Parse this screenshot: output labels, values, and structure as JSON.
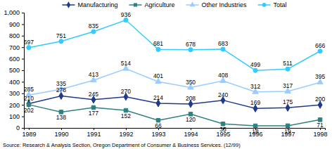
{
  "chart_data": {
    "type": "line",
    "categories": [
      "1989",
      "1990",
      "1991",
      "1992",
      "1993",
      "1994",
      "1995",
      "1996",
      "1997",
      "1998"
    ],
    "series": [
      {
        "name": "Manufacturing",
        "color": "#1f3a8a",
        "marker": "diamond",
        "values": [
          210,
          278,
          245,
          270,
          214,
          208,
          240,
          169,
          175,
          200
        ]
      },
      {
        "name": "Agriculture",
        "color": "#2f8080",
        "marker": "square",
        "values": [
          202,
          138,
          177,
          152,
          66,
          120,
          35,
          18,
          19,
          71
        ]
      },
      {
        "name": "Other Industries",
        "color": "#99ccff",
        "marker": "triangle",
        "values": [
          285,
          335,
          413,
          514,
          401,
          350,
          408,
          312,
          317,
          395
        ]
      },
      {
        "name": "Total",
        "color": "#33ccff",
        "marker": "circle",
        "values": [
          697,
          751,
          835,
          936,
          681,
          678,
          683,
          499,
          511,
          666
        ]
      }
    ],
    "ylim": [
      0,
      1000
    ],
    "yticks": [
      0,
      100,
      200,
      300,
      400,
      500,
      600,
      700,
      800,
      900,
      {
        "value": 1000,
        "label": "1,000"
      }
    ],
    "grid": false,
    "legend": "top",
    "data_labels": true,
    "annotations": [
      "Source: Research & Analysis Section, Oregon Department of Consumer & Business Services. (12/99)"
    ]
  }
}
